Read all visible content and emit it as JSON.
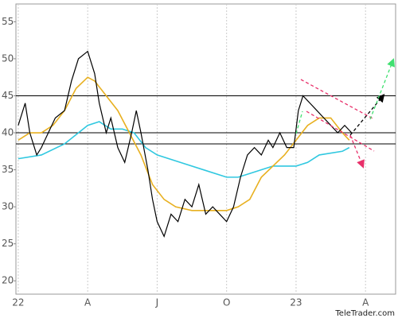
{
  "chart_data": {
    "type": "line",
    "xlim": [
      -0.1,
      16.3
    ],
    "ylim": [
      18.2,
      57.4
    ],
    "yticks": [
      20,
      25,
      30,
      35,
      40,
      45,
      50,
      55
    ],
    "xticks": [
      {
        "value": 0,
        "label": "22"
      },
      {
        "value": 3,
        "label": "A"
      },
      {
        "value": 6,
        "label": "J"
      },
      {
        "value": 9,
        "label": "O"
      },
      {
        "value": 12,
        "label": "23"
      },
      {
        "value": 15,
        "label": "A"
      }
    ],
    "hlines": [
      45,
      40,
      38.5
    ],
    "series": [
      {
        "color": "#000000",
        "x": [
          0,
          0.3,
          0.5,
          0.8,
          1.0,
          1.3,
          1.6,
          2.0,
          2.3,
          2.6,
          3.0,
          3.3,
          3.5,
          3.8,
          4.0,
          4.3,
          4.6,
          4.9,
          5.1,
          5.3,
          5.6,
          5.8,
          6.0,
          6.3,
          6.6,
          6.9,
          7.2,
          7.5,
          7.8,
          8.1,
          8.4,
          8.7,
          9.0,
          9.3,
          9.6,
          9.9,
          10.2,
          10.5,
          10.8,
          11.0,
          11.3,
          11.6,
          11.9,
          12.1,
          12.3,
          12.6,
          12.9,
          13.2,
          13.5,
          13.8,
          14.1,
          14.4
        ],
        "values": [
          41,
          44,
          40,
          37,
          38,
          40,
          42,
          43,
          47,
          50,
          51,
          48,
          44,
          40,
          42,
          38,
          36,
          40,
          43,
          40,
          35,
          31,
          28,
          26,
          29,
          28,
          31,
          30,
          33,
          29,
          30,
          29,
          28,
          30,
          34,
          37,
          38,
          37,
          39,
          38,
          40,
          38,
          38,
          43,
          45,
          44,
          43,
          42,
          41,
          40,
          41,
          40
        ]
      },
      {
        "color": "#e8b020",
        "x": [
          0,
          0.5,
          1,
          1.5,
          2,
          2.5,
          3,
          3.3,
          3.8,
          4.3,
          4.8,
          5.3,
          5.8,
          6.3,
          6.8,
          7.5,
          8.3,
          9,
          9.5,
          10,
          10.5,
          11,
          11.5,
          12,
          12.5,
          13,
          13.5,
          14,
          14.3
        ],
        "values": [
          39,
          40,
          40,
          41,
          43,
          46,
          47.5,
          47,
          45,
          43,
          40,
          37,
          33,
          31,
          30,
          29.5,
          29.5,
          29.5,
          30,
          31,
          34,
          35.5,
          37,
          39,
          41,
          42,
          42,
          40,
          39
        ]
      },
      {
        "color": "#30c8e0",
        "x": [
          0,
          1,
          2,
          3,
          3.5,
          4,
          4.5,
          5,
          5.5,
          6,
          7,
          8,
          9,
          9.5,
          10,
          11,
          12,
          12.5,
          13,
          14,
          14.3
        ],
        "values": [
          36.5,
          37,
          38.5,
          41,
          41.5,
          40.5,
          40.5,
          40,
          38,
          37,
          36,
          35,
          34,
          34,
          34.5,
          35.5,
          35.5,
          36,
          37,
          37.5,
          38
        ]
      }
    ],
    "source": "TeleTrader.com"
  }
}
